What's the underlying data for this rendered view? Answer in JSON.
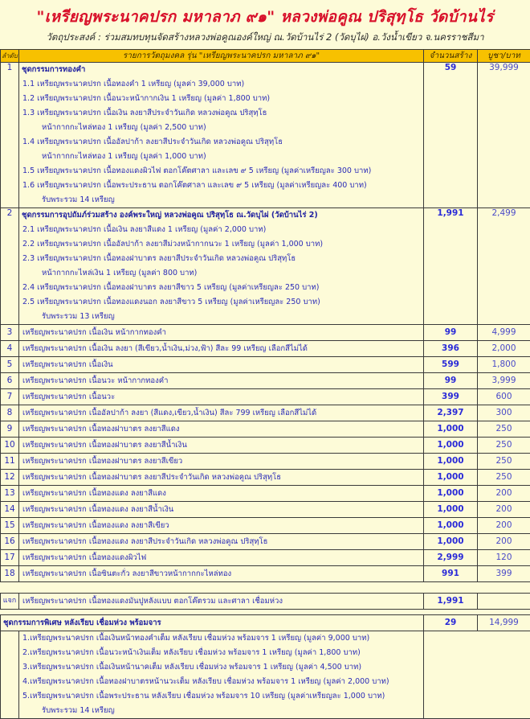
{
  "title": "\"เหรียญพระนาคปรก มหาลาภ ๙๑\"  หลวงพ่อคูณ ปริสุทฺโธ วัดบ้านไร่",
  "subtitle": "วัตถุประสงค์ : ร่วมสมทบทุนจัดสร้างหลวงพ่อคูณองค์ใหญ่ ณ.วัดบ้านไร่ 2 (วัดบุไผ่) อ.วังน้ำเขียว จ.นครราชสีมา",
  "colors": {
    "title": "#d8102a",
    "header_bg": "#f7c100",
    "page_bg": "#fdfbd8",
    "text": "#2b2bb8"
  },
  "table": {
    "headers": [
      "ลำดับ",
      "รายการวัตถุมงคล รุ่น \"เหรียญพระนาคปรก มหาลาภ ๙๑\"",
      "จำนวนสร้าง",
      "บูชา/บาท"
    ],
    "sections": [
      {
        "num": "1",
        "title": "ชุดกรรมการทองคำ",
        "qty": "59",
        "price": "39,999",
        "lines": [
          {
            "text": "1.1 เหรียญพระนาคปรก เนื้อทองคำ 1 เหรียญ (มูลค่า 39,000 บาท)",
            "indent": false
          },
          {
            "text": "1.2 เหรียญพระนาคปรก เนื้อนวะหน้ากากเงิน 1 เหรียญ (มูลค่า 1,800 บาท)",
            "indent": false
          },
          {
            "text": "1.3 เหรียญพระนาคปรก เนื้อเงิน ลงยาสีประจำวันเกิด หลวงพ่อคูณ ปริสุทฺโธ",
            "indent": false
          },
          {
            "text": "หน้ากากกะไหล่ทอง 1 เหรียญ (มูลค่า 2,500 บาท)",
            "indent": true
          },
          {
            "text": "1.4 เหรียญพระนาคปรก เนื้ออัลปาก้า ลงยาสีประจำวันเกิด หลวงพ่อคูณ ปริสุทฺโธ",
            "indent": false
          },
          {
            "text": "หน้ากากกะไหล่ทอง 1 เหรียญ (มูลค่า 1,000 บาท)",
            "indent": true
          },
          {
            "text": "1.5 เหรียญพระนาคปรก เนื้อทองแดงผิวไฟ ตอกโค๊ตศาลา และเลข ๙ 5 เหรียญ (มูลค่าเหรียญละ 300 บาท)",
            "indent": false
          },
          {
            "text": "1.6 เหรียญพระนาคปรก เนื้อพระประธาน ตอกโค๊ตศาลา และเลข ๙ 5 เหรียญ (มูลค่าเหรียญละ 400 บาท)",
            "indent": false
          },
          {
            "text": "รับพระรวม 14 เหรียญ",
            "indent": true
          }
        ]
      },
      {
        "num": "2",
        "title": "ชุดกรรมการอุปถัมภ์ร่วมสร้าง องค์พระใหญ่ หลวงพ่อคูณ ปริสุทฺโธ ณ.วัดบุไผ่ (วัดบ้านไร่ 2)",
        "qty": "1,991",
        "price": "2,499",
        "lines": [
          {
            "text": "2.1 เหรียญพระนาคปรก เนื้อเงิน ลงยาสีแดง 1 เหรียญ (มูลค่า 2,000 บาท)",
            "indent": false
          },
          {
            "text": "2.2 เหรียญพระนาคปรก เนื้ออัลปาก้า ลงยาสีม่วงหน้ากากนวะ 1 เหรียญ (มูลค่า 1,000 บาท)",
            "indent": false
          },
          {
            "text": "2.3 เหรียญพระนาคปรก เนื้อทองฝาบาตร ลงยาสีประจำวันเกิด หลวงพ่อคูณ ปริสุทฺโธ",
            "indent": false
          },
          {
            "text": "หน้ากากกะไหล่เงิน 1 เหรียญ (มูลค่า 800 บาท)",
            "indent": true
          },
          {
            "text": "2.4 เหรียญพระนาคปรก เนื้อทองฝาบาตร ลงยาสีขาว 5 เหรียญ (มูลค่าเหรียญละ 250 บาท)",
            "indent": false
          },
          {
            "text": "2.5 เหรียญพระนาคปรก เนื้อทองแดงนอก ลงยาสีขาว 5 เหรียญ (มูลค่าเหรียญละ 250 บาท)",
            "indent": false
          },
          {
            "text": "รับพระรวม 13 เหรียญ",
            "indent": true
          }
        ]
      }
    ],
    "rows": [
      {
        "num": "3",
        "desc": "เหรียญพระนาคปรก เนื้อเงิน หน้ากากทองคำ",
        "qty": "99",
        "price": "4,999"
      },
      {
        "num": "4",
        "desc": "เหรียญพระนาคปรก เนื้อเงิน ลงยา (สีเขียว,น้ำเงิน,ม่วง,ฟ้า) สีละ 99 เหรียญ เลือกสีไม่ได้",
        "qty": "396",
        "price": "2,000"
      },
      {
        "num": "5",
        "desc": "เหรียญพระนาคปรก เนื้อเงิน",
        "qty": "599",
        "price": "1,800"
      },
      {
        "num": "6",
        "desc": "เหรียญพระนาคปรก เนื้อนวะ หน้ากากทองคำ",
        "qty": "99",
        "price": "3,999"
      },
      {
        "num": "7",
        "desc": "เหรียญพระนาคปรก เนื้อนวะ",
        "qty": "399",
        "price": "600"
      },
      {
        "num": "8",
        "desc": "เหรียญพระนาคปรก เนื้ออัลปาก้า ลงยา (สีแดง,เขียว,น้ำเงิน) สีละ 799 เหรียญ เลือกสีไม่ได้",
        "qty": "2,397",
        "price": "300"
      },
      {
        "num": "9",
        "desc": "เหรียญพระนาคปรก เนื้อทองฝาบาตร ลงยาสีแดง",
        "qty": "1,000",
        "price": "250"
      },
      {
        "num": "10",
        "desc": "เหรียญพระนาคปรก เนื้อทองฝาบาตร ลงยาสีน้ำเงิน",
        "qty": "1,000",
        "price": "250"
      },
      {
        "num": "11",
        "desc": "เหรียญพระนาคปรก เนื้อทองฝาบาตร ลงยาสีเขียว",
        "qty": "1,000",
        "price": "250"
      },
      {
        "num": "12",
        "desc": "เหรียญพระนาคปรก เนื้อทองฝาบาตร ลงยาสีประจำวันเกิด หลวงพ่อคูณ ปริสุทฺโธ",
        "qty": "1,000",
        "price": "250"
      },
      {
        "num": "13",
        "desc": "เหรียญพระนาคปรก เนื้อทองแดง ลงยาสีแดง",
        "qty": "1,000",
        "price": "200"
      },
      {
        "num": "14",
        "desc": "เหรียญพระนาคปรก เนื้อทองแดง ลงยาสีน้ำเงิน",
        "qty": "1,000",
        "price": "200"
      },
      {
        "num": "15",
        "desc": "เหรียญพระนาคปรก เนื้อทองแดง ลงยาสีเขียว",
        "qty": "1,000",
        "price": "200"
      },
      {
        "num": "16",
        "desc": "เหรียญพระนาคปรก เนื้อทองแดง ลงยาสีประจำวันเกิด หลวงพ่อคูณ ปริสุทฺโธ",
        "qty": "1,000",
        "price": "200"
      },
      {
        "num": "17",
        "desc": "เหรียญพระนาคปรก เนื้อทองแดงผิวไฟ",
        "qty": "2,999",
        "price": "120"
      },
      {
        "num": "18",
        "desc": "เหรียญพระนาคปรก เนื้อซินตะกั่ว ลงยาสีขาวหน้ากากกะไหล่ทอง",
        "qty": "991",
        "price": "399"
      }
    ],
    "giveaway": {
      "num": "แจก",
      "desc": "เหรียญพระนาคปรก เนื้อทองแดงมันปูหลังแบบ ตอกโค๊ตรวม และศาลา เชื่อมห่วง",
      "qty": "1,991",
      "price": ""
    },
    "special": {
      "title": "ชุดกรรมการพิเศษ หลังเรียบ เชื่อมห่วง พร้อมจาร",
      "qty": "29",
      "price": "14,999",
      "lines": [
        {
          "text": "1.เหรียญพระนาคปรก เนื้อเงินหน้าทองคำเต็ม หลังเรียบ เชื่อมห่วง พร้อมจาร 1 เหรียญ (มูลค่า 9,000 บาท)",
          "indent": false
        },
        {
          "text": "2.เหรียญพระนาคปรก เนื้อนวะหน้าเงินเต็ม หลังเรียบ เชื่อมห่วง พร้อมจาร 1 เหรียญ (มูลค่า 1,800 บาท)",
          "indent": false
        },
        {
          "text": "3.เหรียญพระนาคปรก เนื้อเงินหน้านาคเต็ม หลังเรียบ เชื่อมห่วง พร้อมจาร 1 เหรียญ (มูลค่า 4,500 บาท)",
          "indent": false
        },
        {
          "text": "4.เหรียญพระนาคปรก เนื้อทองฝาบาตรหน้านวะเต็ม หลังเรียบ เชื่อมห่วง พร้อมจาร 1 เหรียญ (มูลค่า 2,000 บาท)",
          "indent": false
        },
        {
          "text": "5.เหรียญพระนาคปรก เนื้อพระประธาน หลังเรียบ เชื่อมห่วง พร้อมจาร 10 เหรียญ (มูลค่าเหรียญละ 1,000 บาท)",
          "indent": false
        },
        {
          "text": "รับพระรวม 14 เหรียญ",
          "indent": true
        }
      ]
    }
  }
}
